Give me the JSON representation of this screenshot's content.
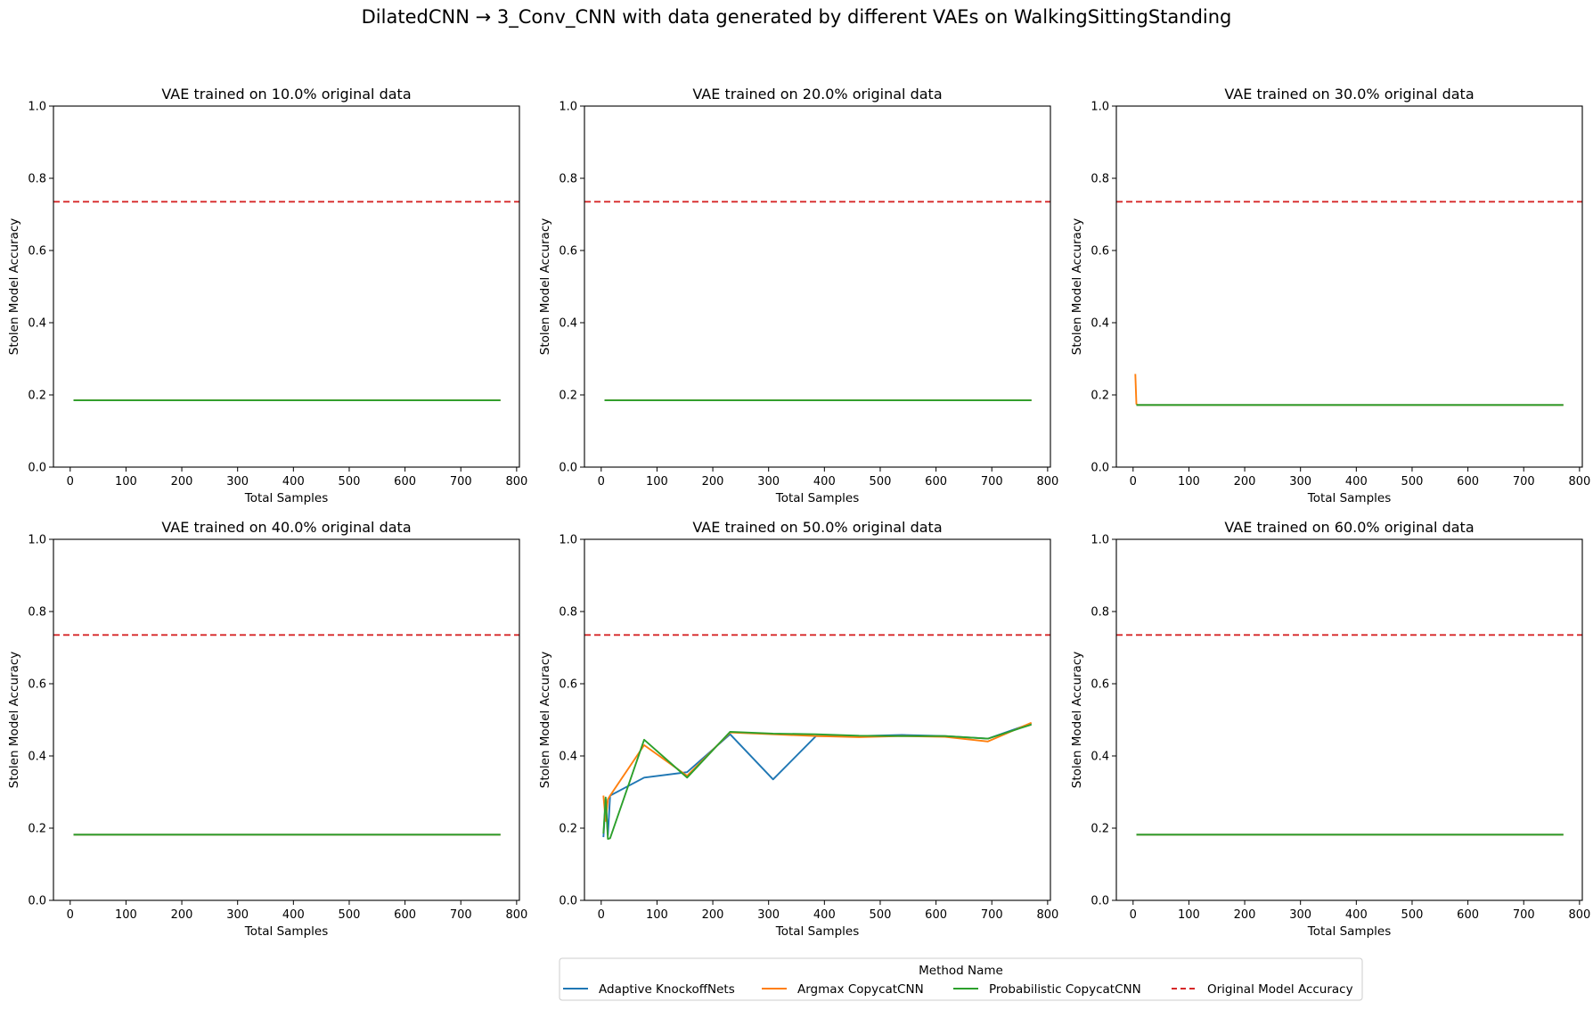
{
  "figure": {
    "title": "DilatedCNN → 3_Conv_CNN with data generated by different VAEs on WalkingSittingStanding"
  },
  "legend": {
    "title": "Method Name",
    "entries": [
      {
        "name": "Adaptive KnockoffNets",
        "color": "#1f77b4",
        "style": "solid"
      },
      {
        "name": "Argmax CopycatCNN",
        "color": "#ff7f0e",
        "style": "solid"
      },
      {
        "name": "Probabilistic CopycatCNN",
        "color": "#2ca02c",
        "style": "solid"
      },
      {
        "name": "Original Model Accuracy",
        "color": "#d62728",
        "style": "dashed"
      }
    ]
  },
  "chart_data": [
    {
      "type": "line",
      "title": "VAE trained on 10.0% original data",
      "xlabel": "Total Samples",
      "ylabel": "Stolen Model Accuracy",
      "xlim": [
        -30,
        805
      ],
      "ylim": [
        0,
        1
      ],
      "xticks": [
        0,
        100,
        200,
        300,
        400,
        500,
        600,
        700,
        800
      ],
      "yticks": [
        0.0,
        0.2,
        0.4,
        0.6,
        0.8,
        1.0
      ],
      "grid": false,
      "hline": {
        "name": "Original Model Accuracy",
        "y": 0.735
      },
      "series": [
        {
          "name": "Adaptive KnockoffNets",
          "x": [
            6,
            771
          ],
          "y": [
            0.185,
            0.185
          ]
        },
        {
          "name": "Argmax CopycatCNN",
          "x": [
            6,
            771
          ],
          "y": [
            0.185,
            0.185
          ]
        },
        {
          "name": "Probabilistic CopycatCNN",
          "x": [
            6,
            771
          ],
          "y": [
            0.185,
            0.185
          ]
        }
      ]
    },
    {
      "type": "line",
      "title": "VAE trained on 20.0% original data",
      "xlabel": "Total Samples",
      "ylabel": "Stolen Model Accuracy",
      "xlim": [
        -30,
        805
      ],
      "ylim": [
        0,
        1
      ],
      "xticks": [
        0,
        100,
        200,
        300,
        400,
        500,
        600,
        700,
        800
      ],
      "yticks": [
        0.0,
        0.2,
        0.4,
        0.6,
        0.8,
        1.0
      ],
      "grid": false,
      "hline": {
        "name": "Original Model Accuracy",
        "y": 0.735
      },
      "series": [
        {
          "name": "Adaptive KnockoffNets",
          "x": [
            6,
            771
          ],
          "y": [
            0.185,
            0.185
          ]
        },
        {
          "name": "Argmax CopycatCNN",
          "x": [
            6,
            771
          ],
          "y": [
            0.185,
            0.185
          ]
        },
        {
          "name": "Probabilistic CopycatCNN",
          "x": [
            6,
            771
          ],
          "y": [
            0.185,
            0.185
          ]
        }
      ]
    },
    {
      "type": "line",
      "title": "VAE trained on 30.0% original data",
      "xlabel": "Total Samples",
      "ylabel": "Stolen Model Accuracy",
      "xlim": [
        -30,
        805
      ],
      "ylim": [
        0,
        1
      ],
      "xticks": [
        0,
        100,
        200,
        300,
        400,
        500,
        600,
        700,
        800
      ],
      "yticks": [
        0.0,
        0.2,
        0.4,
        0.6,
        0.8,
        1.0
      ],
      "grid": false,
      "hline": {
        "name": "Original Model Accuracy",
        "y": 0.735
      },
      "series": [
        {
          "name": "Adaptive KnockoffNets",
          "x": [
            6,
            771
          ],
          "y": [
            0.172,
            0.172
          ]
        },
        {
          "name": "Argmax CopycatCNN",
          "x": [
            4,
            6,
            8,
            12,
            771
          ],
          "y": [
            0.258,
            0.175,
            0.172,
            0.172,
            0.172
          ]
        },
        {
          "name": "Probabilistic CopycatCNN",
          "x": [
            6,
            771
          ],
          "y": [
            0.172,
            0.172
          ]
        }
      ]
    },
    {
      "type": "line",
      "title": "VAE trained on 40.0% original data",
      "xlabel": "Total Samples",
      "ylabel": "Stolen Model Accuracy",
      "xlim": [
        -30,
        805
      ],
      "ylim": [
        0,
        1
      ],
      "xticks": [
        0,
        100,
        200,
        300,
        400,
        500,
        600,
        700,
        800
      ],
      "yticks": [
        0.0,
        0.2,
        0.4,
        0.6,
        0.8,
        1.0
      ],
      "grid": false,
      "hline": {
        "name": "Original Model Accuracy",
        "y": 0.735
      },
      "series": [
        {
          "name": "Adaptive KnockoffNets",
          "x": [
            6,
            771
          ],
          "y": [
            0.182,
            0.182
          ]
        },
        {
          "name": "Argmax CopycatCNN",
          "x": [
            6,
            771
          ],
          "y": [
            0.182,
            0.182
          ]
        },
        {
          "name": "Probabilistic CopycatCNN",
          "x": [
            6,
            771
          ],
          "y": [
            0.182,
            0.182
          ]
        }
      ]
    },
    {
      "type": "line",
      "title": "VAE trained on 50.0% original data",
      "xlabel": "Total Samples",
      "ylabel": "Stolen Model Accuracy",
      "xlim": [
        -30,
        805
      ],
      "ylim": [
        0,
        1
      ],
      "xticks": [
        0,
        100,
        200,
        300,
        400,
        500,
        600,
        700,
        800
      ],
      "yticks": [
        0.0,
        0.2,
        0.4,
        0.6,
        0.8,
        1.0
      ],
      "grid": false,
      "hline": {
        "name": "Original Model Accuracy",
        "y": 0.735
      },
      "series": [
        {
          "name": "Adaptive KnockoffNets",
          "x": [
            4,
            8,
            12,
            16,
            77,
            154,
            231,
            308,
            385,
            462,
            539,
            616,
            693,
            771
          ],
          "y": [
            0.175,
            0.28,
            0.18,
            0.29,
            0.34,
            0.355,
            0.46,
            0.335,
            0.455,
            0.455,
            0.458,
            0.455,
            0.448,
            0.49
          ]
        },
        {
          "name": "Argmax CopycatCNN",
          "x": [
            4,
            8,
            12,
            16,
            77,
            154,
            231,
            308,
            385,
            462,
            539,
            616,
            693,
            771
          ],
          "y": [
            0.29,
            0.22,
            0.28,
            0.29,
            0.43,
            0.345,
            0.465,
            0.46,
            0.455,
            0.452,
            0.455,
            0.453,
            0.44,
            0.492
          ]
        },
        {
          "name": "Probabilistic CopycatCNN",
          "x": [
            4,
            8,
            12,
            16,
            77,
            154,
            231,
            308,
            385,
            462,
            539,
            616,
            693,
            771
          ],
          "y": [
            0.185,
            0.285,
            0.17,
            0.172,
            0.445,
            0.34,
            0.467,
            0.462,
            0.46,
            0.456,
            0.455,
            0.455,
            0.448,
            0.487
          ]
        }
      ]
    },
    {
      "type": "line",
      "title": "VAE trained on 60.0% original data",
      "xlabel": "Total Samples",
      "ylabel": "Stolen Model Accuracy",
      "xlim": [
        -30,
        805
      ],
      "ylim": [
        0,
        1
      ],
      "xticks": [
        0,
        100,
        200,
        300,
        400,
        500,
        600,
        700,
        800
      ],
      "yticks": [
        0.0,
        0.2,
        0.4,
        0.6,
        0.8,
        1.0
      ],
      "grid": false,
      "hline": {
        "name": "Original Model Accuracy",
        "y": 0.735
      },
      "series": [
        {
          "name": "Adaptive KnockoffNets",
          "x": [
            6,
            771
          ],
          "y": [
            0.182,
            0.182
          ]
        },
        {
          "name": "Argmax CopycatCNN",
          "x": [
            6,
            771
          ],
          "y": [
            0.182,
            0.182
          ]
        },
        {
          "name": "Probabilistic CopycatCNN",
          "x": [
            6,
            771
          ],
          "y": [
            0.182,
            0.182
          ]
        }
      ]
    }
  ]
}
